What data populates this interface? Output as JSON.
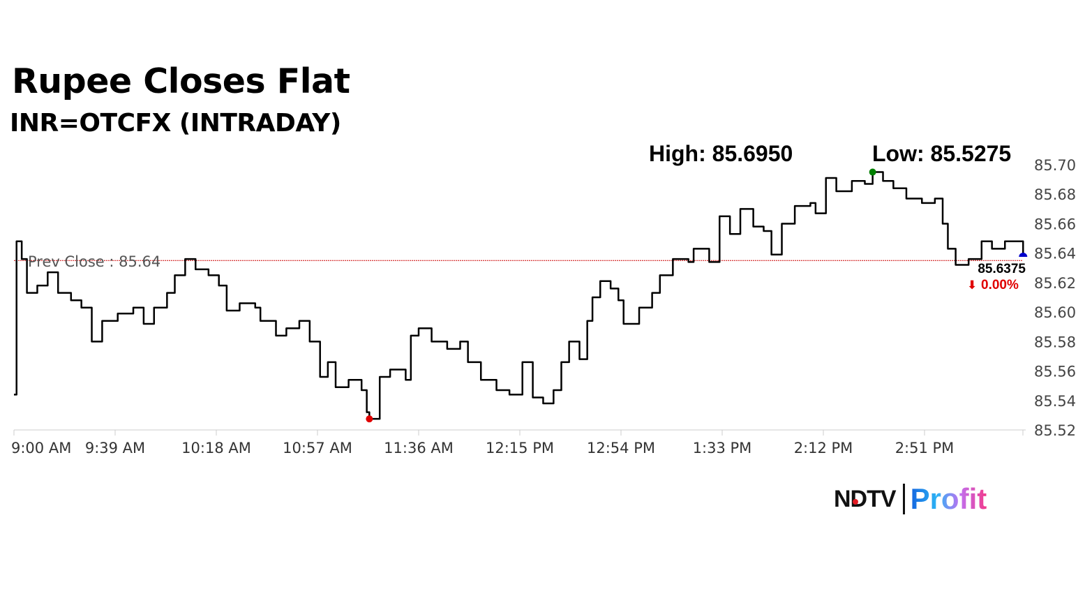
{
  "chart_data": {
    "type": "line",
    "title": "Rupee Closes Flat",
    "subtitle": "INR=OTCFX (INTRADAY)",
    "high_label": "High: 85.6950",
    "low_label": "Low: 85.5275",
    "high": {
      "time": "14:31",
      "value": 85.695,
      "color": "#008000"
    },
    "low": {
      "time": "11:17",
      "value": 85.5275,
      "color": "#e00000"
    },
    "prev_close": {
      "label": "Prev Close : 85.64",
      "value": 85.635,
      "color": "#cc0000"
    },
    "last": {
      "price_label": "85.6375",
      "change_label": "0.00%",
      "change_icon": "down-arrow-icon",
      "change_color": "#e00000",
      "marker_color": "#0000cc"
    },
    "xlim": [
      "09:00",
      "15:30"
    ],
    "ylim": [
      85.52,
      85.7
    ],
    "x_ticks": [
      "9:00 AM",
      "9:39 AM",
      "10:18 AM",
      "10:57 AM",
      "11:36 AM",
      "12:15 PM",
      "12:54 PM",
      "1:33 PM",
      "2:12 PM",
      "2:51 PM"
    ],
    "y_ticks": [
      "85.70",
      "85.68",
      "85.66",
      "85.64",
      "85.62",
      "85.60",
      "85.58",
      "85.56",
      "85.54",
      "85.52"
    ],
    "grid": false,
    "line_color": "#000000",
    "points": [
      [
        "09:00",
        85.544
      ],
      [
        "09:01",
        85.648
      ],
      [
        "09:03",
        85.636
      ],
      [
        "09:05",
        85.613
      ],
      [
        "09:09",
        85.618
      ],
      [
        "09:13",
        85.627
      ],
      [
        "09:17",
        85.613
      ],
      [
        "09:22",
        85.608
      ],
      [
        "09:26",
        85.603
      ],
      [
        "09:30",
        85.58
      ],
      [
        "09:34",
        85.594
      ],
      [
        "09:40",
        85.599
      ],
      [
        "09:46",
        85.603
      ],
      [
        "09:50",
        85.592
      ],
      [
        "09:54",
        85.603
      ],
      [
        "09:59",
        85.613
      ],
      [
        "10:02",
        85.625
      ],
      [
        "10:06",
        85.636
      ],
      [
        "10:10",
        85.629
      ],
      [
        "10:15",
        85.625
      ],
      [
        "10:19",
        85.618
      ],
      [
        "10:22",
        85.601
      ],
      [
        "10:27",
        85.606
      ],
      [
        "10:33",
        85.603
      ],
      [
        "10:35",
        85.594
      ],
      [
        "10:41",
        85.584
      ],
      [
        "10:45",
        85.589
      ],
      [
        "10:50",
        85.594
      ],
      [
        "10:54",
        85.58
      ],
      [
        "10:58",
        85.556
      ],
      [
        "11:01",
        85.566
      ],
      [
        "11:04",
        85.549
      ],
      [
        "11:09",
        85.554
      ],
      [
        "11:14",
        85.547
      ],
      [
        "11:16",
        85.532
      ],
      [
        "11:17",
        85.5275
      ],
      [
        "11:21",
        85.556
      ],
      [
        "11:25",
        85.561
      ],
      [
        "11:31",
        85.554
      ],
      [
        "11:33",
        85.584
      ],
      [
        "11:36",
        85.589
      ],
      [
        "11:41",
        85.58
      ],
      [
        "11:47",
        85.575
      ],
      [
        "11:52",
        85.58
      ],
      [
        "11:55",
        85.566
      ],
      [
        "12:00",
        85.554
      ],
      [
        "12:06",
        85.547
      ],
      [
        "12:11",
        85.544
      ],
      [
        "12:16",
        85.566
      ],
      [
        "12:20",
        85.542
      ],
      [
        "12:24",
        85.538
      ],
      [
        "12:28",
        85.547
      ],
      [
        "12:31",
        85.566
      ],
      [
        "12:34",
        85.58
      ],
      [
        "12:38",
        85.568
      ],
      [
        "12:41",
        85.594
      ],
      [
        "12:43",
        85.61
      ],
      [
        "12:46",
        85.621
      ],
      [
        "12:50",
        85.616
      ],
      [
        "12:53",
        85.608
      ],
      [
        "12:55",
        85.592
      ],
      [
        "13:01",
        85.603
      ],
      [
        "13:06",
        85.613
      ],
      [
        "13:09",
        85.625
      ],
      [
        "13:14",
        85.636
      ],
      [
        "13:20",
        85.634
      ],
      [
        "13:22",
        85.643
      ],
      [
        "13:28",
        85.634
      ],
      [
        "13:32",
        85.665
      ],
      [
        "13:36",
        85.653
      ],
      [
        "13:40",
        85.67
      ],
      [
        "13:45",
        85.658
      ],
      [
        "13:49",
        85.655
      ],
      [
        "13:52",
        85.639
      ],
      [
        "13:56",
        85.66
      ],
      [
        "14:01",
        85.672
      ],
      [
        "14:07",
        85.674
      ],
      [
        "14:09",
        85.667
      ],
      [
        "14:13",
        85.691
      ],
      [
        "14:17",
        85.682
      ],
      [
        "14:23",
        85.689
      ],
      [
        "14:28",
        85.687
      ],
      [
        "14:31",
        85.695
      ],
      [
        "14:35",
        85.689
      ],
      [
        "14:39",
        85.684
      ],
      [
        "14:44",
        85.677
      ],
      [
        "14:50",
        85.674
      ],
      [
        "14:55",
        85.677
      ],
      [
        "14:58",
        85.66
      ],
      [
        "15:00",
        85.643
      ],
      [
        "15:03",
        85.632
      ],
      [
        "15:08",
        85.636
      ],
      [
        "15:13",
        85.648
      ],
      [
        "15:17",
        85.643
      ],
      [
        "15:22",
        85.648
      ],
      [
        "15:26",
        85.648
      ],
      [
        "15:29",
        85.6375
      ]
    ]
  },
  "logo": {
    "brand": "NDTV",
    "product": "Profit"
  }
}
